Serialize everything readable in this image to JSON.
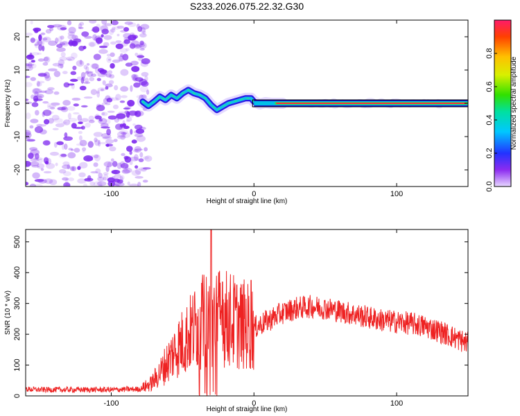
{
  "title": "S233.2026.075.22.32.G30",
  "colors": {
    "snr_line": "#ee2222",
    "noise": "#8a3cf0",
    "frame": "#000000",
    "background": "#ffffff"
  },
  "chart_data": [
    {
      "type": "heatmap",
      "name": "spectrogram",
      "xlabel": "Height of straight line (km)",
      "ylabel": "Frequency (Hz)",
      "xlim": [
        -160,
        150
      ],
      "ylim": [
        -25,
        25
      ],
      "xticks": [
        -100,
        0,
        100
      ],
      "xtick_labels": [
        "-100",
        "0",
        "100"
      ],
      "yticks": [
        -20,
        -10,
        0,
        10,
        20
      ],
      "ytick_labels": [
        "-20",
        "-10",
        "0",
        "10",
        "20"
      ],
      "noise_region_x": [
        -160,
        -78
      ],
      "track": {
        "x": [
          -78,
          -74,
          -70,
          -66,
          -62,
          -58,
          -54,
          -50,
          -46,
          -42,
          -38,
          -34,
          -30,
          -26,
          -22,
          -18,
          -14,
          -10,
          -6,
          -2,
          0,
          4,
          8,
          12,
          16,
          20
        ],
        "y": [
          0.5,
          -0.8,
          0.5,
          2.0,
          1.0,
          2.5,
          1.5,
          3.0,
          4.0,
          3.0,
          2.5,
          1.5,
          -0.5,
          -2.0,
          -1.0,
          0.0,
          0.5,
          1.0,
          1.5,
          1.5,
          0.5,
          -0.2,
          0.2,
          0.0,
          0.0,
          0.0
        ]
      },
      "steady_line": {
        "x": [
          0,
          150
        ],
        "y": 0
      },
      "colorbar": {
        "label": "Normalized spectral amplitude",
        "range": [
          0,
          1
        ],
        "ticks": [
          0.0,
          0.2,
          0.4,
          0.6,
          0.8
        ],
        "tick_labels": [
          "0.0",
          "0.2",
          "0.4",
          "0.6",
          "0.8"
        ],
        "colormap": "rainbow"
      }
    },
    {
      "type": "line",
      "name": "snr",
      "xlabel": "Height of straight line (km)",
      "ylabel": "SNR (10 * v/v)",
      "xlim": [
        -160,
        150
      ],
      "ylim": [
        0,
        540
      ],
      "xticks": [
        -100,
        0,
        100
      ],
      "xtick_labels": [
        "-100",
        "0",
        "100"
      ],
      "yticks": [
        0,
        100,
        200,
        300,
        400,
        500
      ],
      "ytick_labels": [
        "0",
        "100",
        "200",
        "300",
        "400",
        "500"
      ],
      "envelope": {
        "x": [
          -160,
          -150,
          -100,
          -80,
          -72,
          -65,
          -55,
          -45,
          -40,
          -36,
          -32,
          -28,
          -24,
          -18,
          -10,
          0,
          10,
          20,
          30,
          40,
          50,
          60,
          70,
          80,
          90,
          100,
          110,
          120,
          130,
          140,
          150
        ],
        "y": [
          22,
          20,
          20,
          22,
          40,
          80,
          150,
          200,
          230,
          240,
          245,
          250,
          255,
          250,
          235,
          220,
          245,
          270,
          285,
          290,
          285,
          275,
          265,
          255,
          245,
          240,
          235,
          225,
          210,
          190,
          170
        ]
      },
      "spikes": [
        {
          "x": -33,
          "y": 330
        },
        {
          "x": -30,
          "y": 540
        },
        {
          "x": -22,
          "y": 370
        },
        {
          "x": -12,
          "y": 360
        },
        {
          "x": -2,
          "y": 375
        }
      ]
    }
  ]
}
